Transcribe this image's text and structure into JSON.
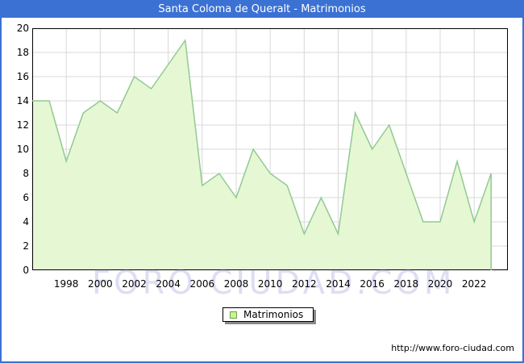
{
  "window": {
    "title": "Santa Coloma de Queralt - Matrimonios"
  },
  "watermark": "FORO CIUDAD.COM",
  "legend": {
    "label": "Matrimonios"
  },
  "footer": {
    "url": "http://www.foro-ciudad.com"
  },
  "colors": {
    "titlebar_bg": "#3b71d3",
    "frame_border": "#3b71d3",
    "area_fill": "#e5f8d3",
    "area_stroke": "#92c992",
    "legend_swatch_fill": "#c6f593",
    "legend_swatch_border": "#6f9f4f",
    "grid": "#d8d8d8",
    "plot_border": "#000000",
    "watermark_color": "#7a7ad2"
  },
  "chart_data": {
    "type": "area",
    "title": "Santa Coloma de Queralt - Matrimonios",
    "series_name": "Matrimonios",
    "x_years": [
      1996,
      1997,
      1998,
      1999,
      2000,
      2001,
      2002,
      2003,
      2004,
      2005,
      2006,
      2007,
      2008,
      2009,
      2010,
      2011,
      2012,
      2013,
      2014,
      2015,
      2016,
      2017,
      2018,
      2019,
      2020,
      2021,
      2022,
      2023
    ],
    "values": [
      14,
      14,
      9,
      13,
      14,
      13,
      16,
      15,
      17,
      19,
      7,
      8,
      6,
      10,
      8,
      7,
      3,
      6,
      3,
      13,
      10,
      12,
      8,
      4,
      4,
      9,
      4,
      8
    ],
    "xlabel": "",
    "ylabel": "",
    "ylim": [
      0,
      20
    ],
    "yticks": [
      0,
      2,
      4,
      6,
      8,
      10,
      12,
      14,
      16,
      18,
      20
    ],
    "xticks": [
      1998,
      2000,
      2002,
      2004,
      2006,
      2008,
      2010,
      2012,
      2014,
      2016,
      2018,
      2020,
      2022
    ],
    "grid": true,
    "legend_entries": [
      "Matrimonios"
    ],
    "legend_position": "bottom-center"
  }
}
